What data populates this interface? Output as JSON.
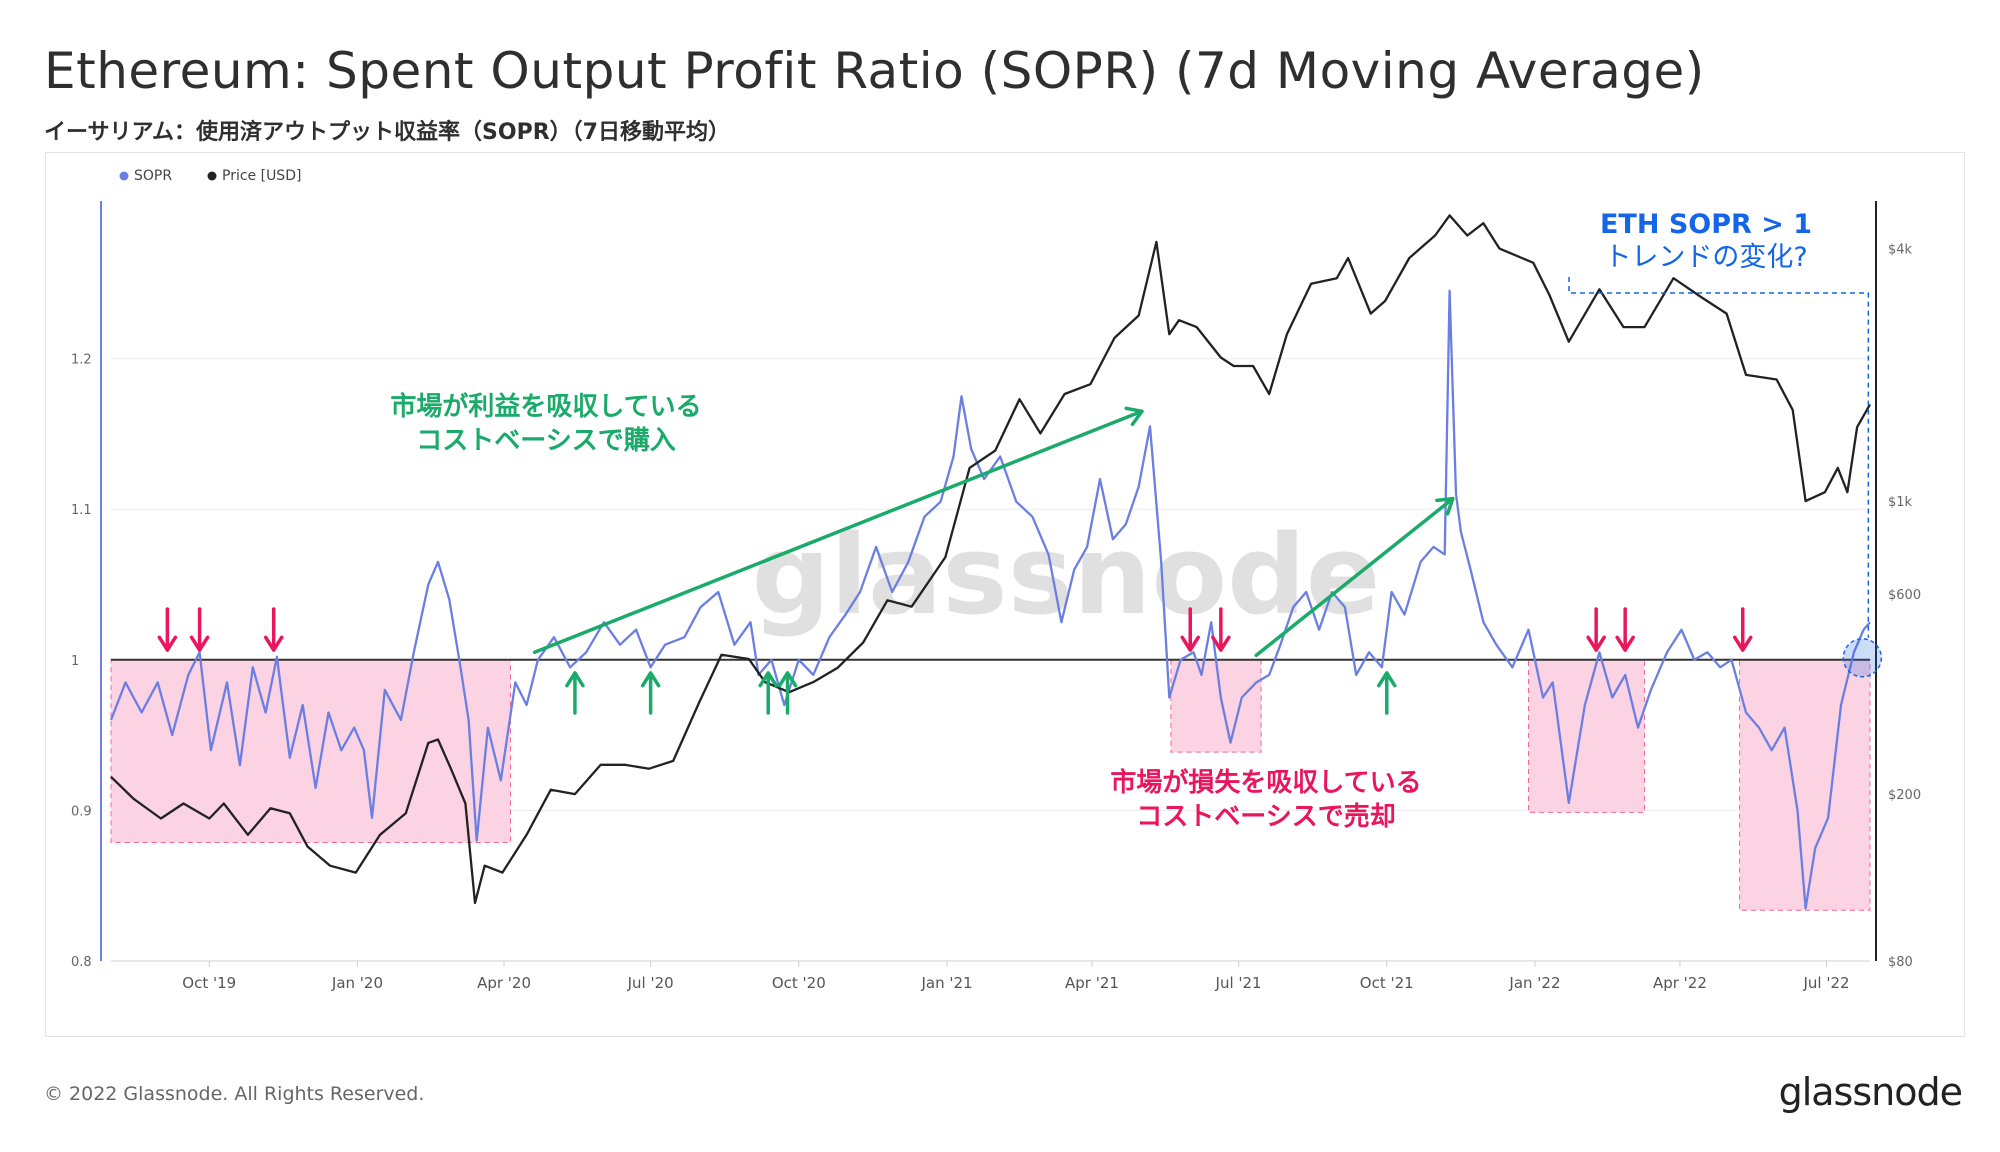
{
  "page": {
    "title": "Ethereum: Spent Output Profit Ratio (SOPR) (7d Moving Average)",
    "subtitle": "イーサリアム：使用済アウトプット収益率（SOPR）（7日移動平均）",
    "copyright": "© 2022 Glassnode. All Rights Reserved.",
    "brand": "glassnode",
    "watermark": "glassnode"
  },
  "colors": {
    "sopr": "#6b7fe3",
    "price": "#222222",
    "loss_zone": "#fbd3e2",
    "loss_zone_border": "#f06a95",
    "down_arrow": "#e8175d",
    "up_arrow": "#1aaa6a",
    "trend_arrow": "#1aaa6a",
    "loss_text": "#e8175d",
    "profit_text": "#1aaa6a",
    "callout": "#1565e8",
    "baseline": "#333333"
  },
  "chart_data": {
    "type": "line",
    "legend": {
      "placement": "top-left",
      "entries": [
        "SOPR",
        "Price [USD]"
      ]
    },
    "grid": true,
    "x_axis": {
      "type": "date",
      "range": [
        "2019-08-01",
        "2022-07-28"
      ],
      "ticks": [
        {
          "date": "2019-10-01",
          "label": "Oct '19"
        },
        {
          "date": "2020-01-01",
          "label": "Jan '20"
        },
        {
          "date": "2020-04-01",
          "label": "Apr '20"
        },
        {
          "date": "2020-07-01",
          "label": "Jul '20"
        },
        {
          "date": "2020-10-01",
          "label": "Oct '20"
        },
        {
          "date": "2021-01-01",
          "label": "Jan '21"
        },
        {
          "date": "2021-04-01",
          "label": "Apr '21"
        },
        {
          "date": "2021-07-01",
          "label": "Jul '21"
        },
        {
          "date": "2021-10-01",
          "label": "Oct '21"
        },
        {
          "date": "2022-01-01",
          "label": "Jan '22"
        },
        {
          "date": "2022-04-01",
          "label": "Apr '22"
        },
        {
          "date": "2022-07-01",
          "label": "Jul '22"
        }
      ]
    },
    "y_left": {
      "name": "SOPR",
      "range": [
        0.8,
        1.3
      ],
      "baseline": 1.0,
      "ticks": [
        {
          "value": 0.8,
          "label": "0.8"
        },
        {
          "value": 0.9,
          "label": "0.9"
        },
        {
          "value": 1.0,
          "label": "1"
        },
        {
          "value": 1.1,
          "label": "1.1"
        },
        {
          "value": 1.2,
          "label": "1.2"
        }
      ]
    },
    "y_right": {
      "name": "Price [USD]",
      "scale": "log",
      "range": [
        80,
        5000
      ],
      "ticks": [
        {
          "value": 80,
          "label": "$80"
        },
        {
          "value": 200,
          "label": "$200"
        },
        {
          "value": 600,
          "label": "$600"
        },
        {
          "value": 1000,
          "label": "$1k"
        },
        {
          "value": 4000,
          "label": "$4k"
        }
      ]
    },
    "series": [
      {
        "name": "SOPR",
        "axis": "left",
        "points": [
          [
            "2019-08-01",
            0.96
          ],
          [
            "2019-08-10",
            0.985
          ],
          [
            "2019-08-20",
            0.965
          ],
          [
            "2019-08-30",
            0.985
          ],
          [
            "2019-09-08",
            0.95
          ],
          [
            "2019-09-18",
            0.99
          ],
          [
            "2019-09-25",
            1.005
          ],
          [
            "2019-10-02",
            0.94
          ],
          [
            "2019-10-12",
            0.985
          ],
          [
            "2019-10-20",
            0.93
          ],
          [
            "2019-10-28",
            0.995
          ],
          [
            "2019-11-05",
            0.965
          ],
          [
            "2019-11-12",
            1.002
          ],
          [
            "2019-11-20",
            0.935
          ],
          [
            "2019-11-28",
            0.97
          ],
          [
            "2019-12-06",
            0.915
          ],
          [
            "2019-12-14",
            0.965
          ],
          [
            "2019-12-22",
            0.94
          ],
          [
            "2019-12-30",
            0.955
          ],
          [
            "2020-01-05",
            0.94
          ],
          [
            "2020-01-10",
            0.895
          ],
          [
            "2020-01-18",
            0.98
          ],
          [
            "2020-01-28",
            0.96
          ],
          [
            "2020-02-05",
            1.005
          ],
          [
            "2020-02-14",
            1.05
          ],
          [
            "2020-02-20",
            1.065
          ],
          [
            "2020-02-27",
            1.04
          ],
          [
            "2020-03-05",
            0.995
          ],
          [
            "2020-03-10",
            0.96
          ],
          [
            "2020-03-15",
            0.88
          ],
          [
            "2020-03-22",
            0.955
          ],
          [
            "2020-03-30",
            0.92
          ],
          [
            "2020-04-08",
            0.985
          ],
          [
            "2020-04-15",
            0.97
          ],
          [
            "2020-04-22",
            1.0
          ],
          [
            "2020-05-02",
            1.015
          ],
          [
            "2020-05-12",
            0.995
          ],
          [
            "2020-05-22",
            1.005
          ],
          [
            "2020-06-02",
            1.025
          ],
          [
            "2020-06-12",
            1.01
          ],
          [
            "2020-06-22",
            1.02
          ],
          [
            "2020-07-01",
            0.995
          ],
          [
            "2020-07-10",
            1.01
          ],
          [
            "2020-07-22",
            1.015
          ],
          [
            "2020-08-01",
            1.035
          ],
          [
            "2020-08-12",
            1.045
          ],
          [
            "2020-08-22",
            1.01
          ],
          [
            "2020-09-01",
            1.025
          ],
          [
            "2020-09-06",
            0.99
          ],
          [
            "2020-09-14",
            1.0
          ],
          [
            "2020-09-22",
            0.97
          ],
          [
            "2020-10-01",
            1.0
          ],
          [
            "2020-10-10",
            0.99
          ],
          [
            "2020-10-20",
            1.015
          ],
          [
            "2020-10-30",
            1.03
          ],
          [
            "2020-11-08",
            1.045
          ],
          [
            "2020-11-18",
            1.075
          ],
          [
            "2020-11-28",
            1.045
          ],
          [
            "2020-12-08",
            1.065
          ],
          [
            "2020-12-18",
            1.095
          ],
          [
            "2020-12-28",
            1.105
          ],
          [
            "2021-01-05",
            1.135
          ],
          [
            "2021-01-10",
            1.175
          ],
          [
            "2021-01-16",
            1.14
          ],
          [
            "2021-01-24",
            1.12
          ],
          [
            "2021-02-03",
            1.135
          ],
          [
            "2021-02-13",
            1.105
          ],
          [
            "2021-02-23",
            1.095
          ],
          [
            "2021-03-05",
            1.07
          ],
          [
            "2021-03-13",
            1.025
          ],
          [
            "2021-03-21",
            1.06
          ],
          [
            "2021-03-29",
            1.075
          ],
          [
            "2021-04-06",
            1.12
          ],
          [
            "2021-04-14",
            1.08
          ],
          [
            "2021-04-22",
            1.09
          ],
          [
            "2021-04-30",
            1.115
          ],
          [
            "2021-05-07",
            1.155
          ],
          [
            "2021-05-14",
            1.065
          ],
          [
            "2021-05-19",
            0.975
          ],
          [
            "2021-05-26",
            1.0
          ],
          [
            "2021-06-03",
            1.005
          ],
          [
            "2021-06-08",
            0.99
          ],
          [
            "2021-06-14",
            1.025
          ],
          [
            "2021-06-20",
            0.975
          ],
          [
            "2021-06-26",
            0.945
          ],
          [
            "2021-07-03",
            0.975
          ],
          [
            "2021-07-12",
            0.985
          ],
          [
            "2021-07-20",
            0.99
          ],
          [
            "2021-07-27",
            1.01
          ],
          [
            "2021-08-04",
            1.035
          ],
          [
            "2021-08-12",
            1.045
          ],
          [
            "2021-08-20",
            1.02
          ],
          [
            "2021-08-28",
            1.045
          ],
          [
            "2021-09-05",
            1.035
          ],
          [
            "2021-09-12",
            0.99
          ],
          [
            "2021-09-20",
            1.005
          ],
          [
            "2021-09-28",
            0.995
          ],
          [
            "2021-10-04",
            1.045
          ],
          [
            "2021-10-12",
            1.03
          ],
          [
            "2021-10-22",
            1.065
          ],
          [
            "2021-10-30",
            1.075
          ],
          [
            "2021-11-06",
            1.07
          ],
          [
            "2021-11-09",
            1.245
          ],
          [
            "2021-11-13",
            1.11
          ],
          [
            "2021-11-16",
            1.085
          ],
          [
            "2021-11-22",
            1.06
          ],
          [
            "2021-11-30",
            1.025
          ],
          [
            "2021-12-08",
            1.01
          ],
          [
            "2021-12-18",
            0.995
          ],
          [
            "2021-12-28",
            1.02
          ],
          [
            "2022-01-06",
            0.975
          ],
          [
            "2022-01-12",
            0.985
          ],
          [
            "2022-01-22",
            0.905
          ],
          [
            "2022-02-01",
            0.97
          ],
          [
            "2022-02-10",
            1.005
          ],
          [
            "2022-02-18",
            0.975
          ],
          [
            "2022-02-26",
            0.99
          ],
          [
            "2022-03-06",
            0.955
          ],
          [
            "2022-03-14",
            0.98
          ],
          [
            "2022-03-24",
            1.005
          ],
          [
            "2022-04-02",
            1.02
          ],
          [
            "2022-04-10",
            1.0
          ],
          [
            "2022-04-18",
            1.005
          ],
          [
            "2022-04-26",
            0.995
          ],
          [
            "2022-05-03",
            1.0
          ],
          [
            "2022-05-12",
            0.965
          ],
          [
            "2022-05-20",
            0.955
          ],
          [
            "2022-05-28",
            0.94
          ],
          [
            "2022-06-05",
            0.955
          ],
          [
            "2022-06-13",
            0.9
          ],
          [
            "2022-06-18",
            0.835
          ],
          [
            "2022-06-24",
            0.875
          ],
          [
            "2022-07-02",
            0.895
          ],
          [
            "2022-07-10",
            0.97
          ],
          [
            "2022-07-18",
            1.005
          ],
          [
            "2022-07-24",
            1.02
          ],
          [
            "2022-07-28",
            1.025
          ]
        ]
      },
      {
        "name": "Price [USD]",
        "axis": "right",
        "points": [
          [
            "2019-08-01",
            220
          ],
          [
            "2019-08-15",
            195
          ],
          [
            "2019-09-01",
            175
          ],
          [
            "2019-09-15",
            190
          ],
          [
            "2019-10-01",
            175
          ],
          [
            "2019-10-10",
            190
          ],
          [
            "2019-10-25",
            160
          ],
          [
            "2019-11-08",
            185
          ],
          [
            "2019-11-20",
            180
          ],
          [
            "2019-12-01",
            150
          ],
          [
            "2019-12-15",
            135
          ],
          [
            "2019-12-31",
            130
          ],
          [
            "2020-01-15",
            160
          ],
          [
            "2020-01-31",
            180
          ],
          [
            "2020-02-14",
            265
          ],
          [
            "2020-02-20",
            270
          ],
          [
            "2020-02-28",
            230
          ],
          [
            "2020-03-08",
            190
          ],
          [
            "2020-03-14",
            110
          ],
          [
            "2020-03-20",
            135
          ],
          [
            "2020-03-31",
            130
          ],
          [
            "2020-04-15",
            160
          ],
          [
            "2020-04-30",
            205
          ],
          [
            "2020-05-15",
            200
          ],
          [
            "2020-05-31",
            235
          ],
          [
            "2020-06-15",
            235
          ],
          [
            "2020-06-30",
            230
          ],
          [
            "2020-07-15",
            240
          ],
          [
            "2020-07-31",
            330
          ],
          [
            "2020-08-14",
            430
          ],
          [
            "2020-08-31",
            420
          ],
          [
            "2020-09-10",
            370
          ],
          [
            "2020-09-25",
            350
          ],
          [
            "2020-10-10",
            370
          ],
          [
            "2020-10-25",
            400
          ],
          [
            "2020-11-10",
            460
          ],
          [
            "2020-11-25",
            580
          ],
          [
            "2020-12-10",
            560
          ],
          [
            "2020-12-31",
            735
          ],
          [
            "2021-01-15",
            1200
          ],
          [
            "2021-01-31",
            1320
          ],
          [
            "2021-02-15",
            1750
          ],
          [
            "2021-02-28",
            1450
          ],
          [
            "2021-03-15",
            1800
          ],
          [
            "2021-03-31",
            1900
          ],
          [
            "2021-04-15",
            2450
          ],
          [
            "2021-04-30",
            2770
          ],
          [
            "2021-05-11",
            4150
          ],
          [
            "2021-05-19",
            2500
          ],
          [
            "2021-05-25",
            2700
          ],
          [
            "2021-06-05",
            2600
          ],
          [
            "2021-06-20",
            2200
          ],
          [
            "2021-06-28",
            2100
          ],
          [
            "2021-07-10",
            2100
          ],
          [
            "2021-07-20",
            1800
          ],
          [
            "2021-07-31",
            2500
          ],
          [
            "2021-08-15",
            3300
          ],
          [
            "2021-08-31",
            3400
          ],
          [
            "2021-09-07",
            3800
          ],
          [
            "2021-09-21",
            2800
          ],
          [
            "2021-09-30",
            3000
          ],
          [
            "2021-10-15",
            3800
          ],
          [
            "2021-10-31",
            4300
          ],
          [
            "2021-11-09",
            4800
          ],
          [
            "2021-11-20",
            4300
          ],
          [
            "2021-11-30",
            4600
          ],
          [
            "2021-12-10",
            4000
          ],
          [
            "2021-12-31",
            3700
          ],
          [
            "2022-01-10",
            3100
          ],
          [
            "2022-01-22",
            2400
          ],
          [
            "2022-02-10",
            3200
          ],
          [
            "2022-02-25",
            2600
          ],
          [
            "2022-03-10",
            2600
          ],
          [
            "2022-03-28",
            3400
          ],
          [
            "2022-04-15",
            3050
          ],
          [
            "2022-04-30",
            2800
          ],
          [
            "2022-05-12",
            2000
          ],
          [
            "2022-05-31",
            1950
          ],
          [
            "2022-06-10",
            1650
          ],
          [
            "2022-06-18",
            1000
          ],
          [
            "2022-06-30",
            1050
          ],
          [
            "2022-07-08",
            1200
          ],
          [
            "2022-07-14",
            1050
          ],
          [
            "2022-07-20",
            1500
          ],
          [
            "2022-07-28",
            1700
          ]
        ]
      }
    ],
    "annotations": {
      "profit_label": [
        "市場が利益を吸収している",
        "コストベーシスで購入"
      ],
      "loss_label": [
        "市場が損失を吸収している",
        "コストベーシスで売却"
      ],
      "callout": [
        "ETH SOPR > 1",
        "トレンドの変化?"
      ],
      "loss_zones": [
        {
          "start": "2019-08-01",
          "end": "2020-04-05",
          "sopr_min": 0.88
        },
        {
          "start": "2021-05-20",
          "end": "2021-07-15",
          "sopr_min": 0.94
        },
        {
          "start": "2021-12-28",
          "end": "2022-03-10",
          "sopr_min": 0.9
        },
        {
          "start": "2022-05-08",
          "end": "2022-07-28",
          "sopr_min": 0.835
        }
      ],
      "down_arrows": [
        "2019-09-05",
        "2019-09-25",
        "2019-11-10",
        "2021-06-01",
        "2021-06-20",
        "2022-02-08",
        "2022-02-26",
        "2022-05-10"
      ],
      "up_arrows": [
        "2020-05-15",
        "2020-07-01",
        "2020-09-12",
        "2020-09-24",
        "2021-10-01"
      ],
      "trend_arrows": [
        {
          "from": [
            "2020-04-20",
            1.005
          ],
          "to": [
            "2021-05-02",
            1.165
          ]
        },
        {
          "from": [
            "2021-07-12",
            1.003
          ],
          "to": [
            "2021-11-11",
            1.107
          ]
        }
      ],
      "callout_target": "2022-07-22"
    }
  }
}
